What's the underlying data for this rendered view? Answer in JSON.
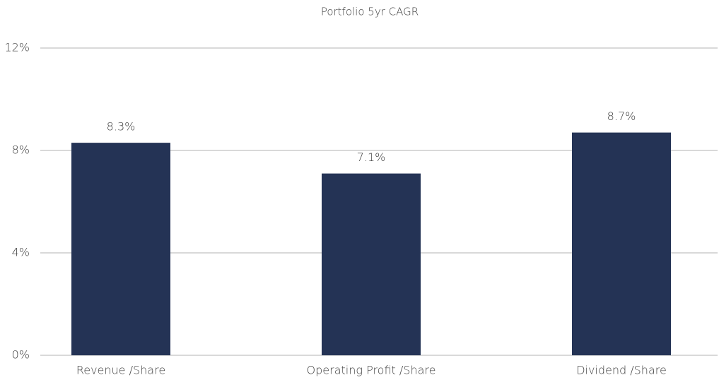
{
  "chart_data": {
    "type": "bar",
    "title": "Portfolio 5yr CAGR",
    "categories": [
      "Revenue /Share",
      "Operating Profit /Share",
      "Dividend /Share"
    ],
    "values": [
      8.3,
      7.1,
      8.7
    ],
    "value_labels": [
      "8.3%",
      "7.1%",
      "8.7%"
    ],
    "color": "#243355",
    "ylim": [
      0,
      12
    ],
    "yticks": [
      {
        "value": 0,
        "label": "0%"
      },
      {
        "value": 4,
        "label": "4%"
      },
      {
        "value": 8,
        "label": "8%"
      },
      {
        "value": 12,
        "label": "12%"
      }
    ],
    "grid": true
  }
}
